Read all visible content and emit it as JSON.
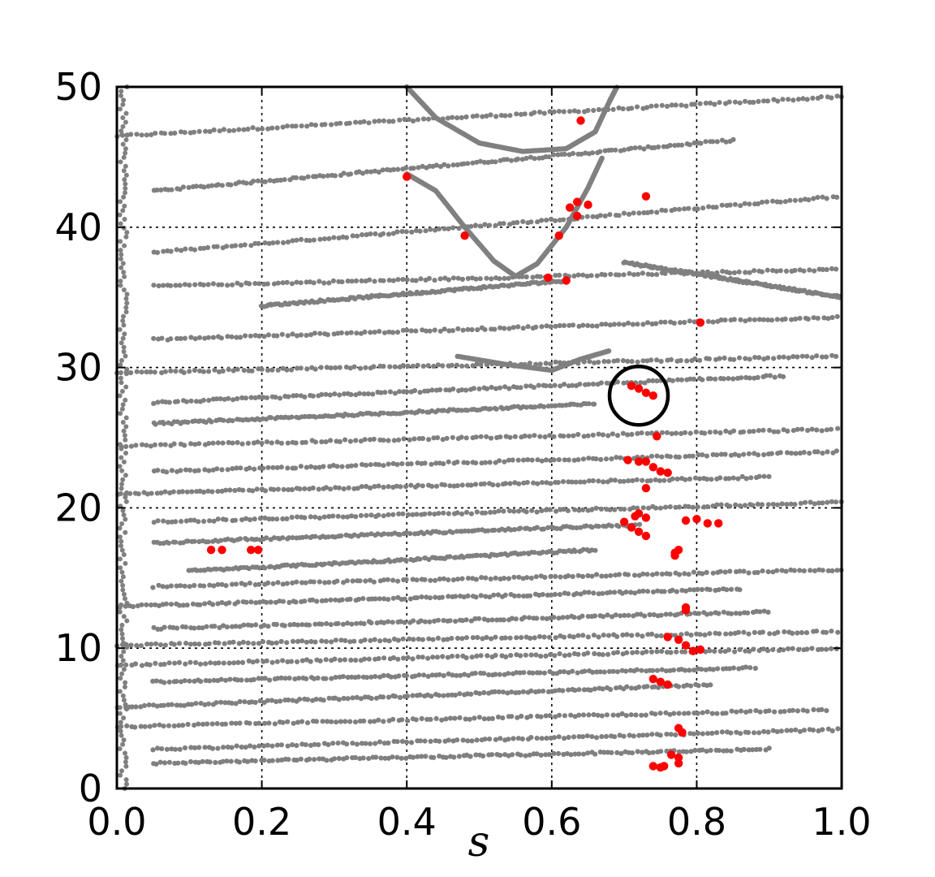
{
  "chart_data": {
    "type": "scatter",
    "title": "",
    "xlabel": "s",
    "ylabel": "",
    "xlim": [
      0.0,
      1.0
    ],
    "ylim": [
      0,
      50
    ],
    "grid": true,
    "x_ticks": [
      0.0,
      0.2,
      0.4,
      0.6,
      0.8,
      1.0
    ],
    "x_tick_labels": [
      "0.0",
      "0.2",
      "0.4",
      "0.6",
      "0.8",
      "1.0"
    ],
    "y_ticks": [
      0,
      10,
      20,
      30,
      40,
      50
    ],
    "y_tick_labels": [
      "0",
      "10",
      "20",
      "30",
      "40",
      "50"
    ],
    "colors": {
      "background_points": "#808080",
      "highlight_points": "#ff0000",
      "circle": "#000000"
    },
    "background_bands": [
      {
        "x": [
          0.0,
          1.0
        ],
        "y": [
          46.5,
          49.3
        ]
      },
      {
        "x": [
          0.05,
          0.85
        ],
        "y": [
          42.6,
          46.2
        ]
      },
      {
        "x": [
          0.05,
          1.0
        ],
        "y": [
          38.2,
          42.2
        ]
      },
      {
        "x": [
          0.05,
          1.0
        ],
        "y": [
          35.8,
          37.0
        ]
      },
      {
        "x": [
          0.2,
          0.62
        ],
        "y": [
          34.4,
          36.2
        ]
      },
      {
        "x": [
          0.7,
          1.0
        ],
        "y": [
          37.5,
          35.0
        ]
      },
      {
        "x": [
          0.05,
          1.0
        ],
        "y": [
          32.0,
          33.6
        ]
      },
      {
        "x": [
          0.0,
          1.0
        ],
        "y": [
          29.6,
          30.8
        ]
      },
      {
        "x": [
          0.05,
          0.92
        ],
        "y": [
          27.5,
          29.4
        ]
      },
      {
        "x": [
          0.05,
          0.66
        ],
        "y": [
          26.0,
          27.4
        ]
      },
      {
        "x": [
          0.0,
          1.0
        ],
        "y": [
          24.4,
          25.6
        ]
      },
      {
        "x": [
          0.05,
          1.0
        ],
        "y": [
          22.6,
          24.0
        ]
      },
      {
        "x": [
          0.0,
          0.9
        ],
        "y": [
          21.0,
          22.2
        ]
      },
      {
        "x": [
          0.05,
          1.0
        ],
        "y": [
          19.0,
          20.4
        ]
      },
      {
        "x": [
          0.05,
          0.72
        ],
        "y": [
          17.5,
          18.8
        ]
      },
      {
        "x": [
          0.1,
          0.66
        ],
        "y": [
          15.5,
          17.0
        ]
      },
      {
        "x": [
          0.05,
          1.0
        ],
        "y": [
          14.4,
          15.6
        ]
      },
      {
        "x": [
          0.0,
          0.86
        ],
        "y": [
          13.0,
          14.2
        ]
      },
      {
        "x": [
          0.05,
          0.9
        ],
        "y": [
          11.4,
          12.6
        ]
      },
      {
        "x": [
          0.0,
          1.0
        ],
        "y": [
          10.2,
          11.2
        ]
      },
      {
        "x": [
          0.0,
          1.0
        ],
        "y": [
          8.8,
          10.0
        ]
      },
      {
        "x": [
          0.05,
          0.88
        ],
        "y": [
          7.6,
          8.6
        ]
      },
      {
        "x": [
          0.0,
          0.82
        ],
        "y": [
          5.8,
          7.4
        ]
      },
      {
        "x": [
          0.0,
          0.98
        ],
        "y": [
          4.4,
          5.6
        ]
      },
      {
        "x": [
          0.05,
          1.0
        ],
        "y": [
          2.8,
          4.2
        ]
      },
      {
        "x": [
          0.05,
          0.9
        ],
        "y": [
          1.8,
          2.8
        ]
      }
    ],
    "background_curves": [
      {
        "name": "upper-loop",
        "points": [
          [
            0.4,
            50.0
          ],
          [
            0.44,
            47.8
          ],
          [
            0.5,
            46.0
          ],
          [
            0.56,
            45.4
          ],
          [
            0.62,
            45.6
          ],
          [
            0.66,
            46.8
          ],
          [
            0.68,
            49.0
          ],
          [
            0.69,
            50.0
          ]
        ]
      },
      {
        "name": "v-curve",
        "points": [
          [
            0.4,
            43.8
          ],
          [
            0.44,
            42.6
          ],
          [
            0.48,
            40.0
          ],
          [
            0.52,
            37.6
          ],
          [
            0.55,
            36.5
          ],
          [
            0.58,
            37.4
          ],
          [
            0.62,
            40.0
          ],
          [
            0.65,
            42.8
          ],
          [
            0.67,
            45.0
          ]
        ]
      },
      {
        "name": "small-dip",
        "points": [
          [
            0.47,
            30.8
          ],
          [
            0.54,
            30.2
          ],
          [
            0.6,
            29.8
          ],
          [
            0.64,
            30.6
          ],
          [
            0.68,
            31.2
          ]
        ]
      }
    ],
    "highlight_points": [
      [
        0.4,
        43.6
      ],
      [
        0.48,
        39.4
      ],
      [
        0.64,
        47.6
      ],
      [
        0.625,
        41.4
      ],
      [
        0.635,
        41.8
      ],
      [
        0.635,
        40.8
      ],
      [
        0.65,
        41.6
      ],
      [
        0.61,
        39.4
      ],
      [
        0.595,
        36.4
      ],
      [
        0.62,
        36.2
      ],
      [
        0.73,
        42.2
      ],
      [
        0.805,
        33.2
      ],
      [
        0.71,
        28.7
      ],
      [
        0.72,
        28.5
      ],
      [
        0.73,
        28.2
      ],
      [
        0.74,
        28.0
      ],
      [
        0.745,
        25.1
      ],
      [
        0.705,
        23.4
      ],
      [
        0.72,
        23.3
      ],
      [
        0.73,
        23.3
      ],
      [
        0.74,
        22.9
      ],
      [
        0.75,
        22.6
      ],
      [
        0.76,
        22.5
      ],
      [
        0.73,
        21.4
      ],
      [
        0.7,
        19.0
      ],
      [
        0.71,
        18.6
      ],
      [
        0.72,
        18.3
      ],
      [
        0.73,
        18.0
      ],
      [
        0.715,
        19.4
      ],
      [
        0.73,
        19.3
      ],
      [
        0.72,
        19.6
      ],
      [
        0.785,
        19.1
      ],
      [
        0.8,
        19.2
      ],
      [
        0.815,
        18.9
      ],
      [
        0.83,
        18.9
      ],
      [
        0.77,
        16.8
      ],
      [
        0.775,
        17.0
      ],
      [
        0.77,
        16.6
      ],
      [
        0.13,
        17.0
      ],
      [
        0.145,
        17.0
      ],
      [
        0.185,
        17.0
      ],
      [
        0.195,
        17.0
      ],
      [
        0.785,
        12.9
      ],
      [
        0.785,
        12.7
      ],
      [
        0.76,
        10.8
      ],
      [
        0.775,
        10.6
      ],
      [
        0.785,
        10.2
      ],
      [
        0.795,
        9.8
      ],
      [
        0.805,
        9.9
      ],
      [
        0.74,
        7.8
      ],
      [
        0.75,
        7.6
      ],
      [
        0.76,
        7.4
      ],
      [
        0.775,
        4.3
      ],
      [
        0.78,
        4.0
      ],
      [
        0.765,
        2.4
      ],
      [
        0.775,
        2.2
      ],
      [
        0.775,
        1.8
      ],
      [
        0.74,
        1.6
      ],
      [
        0.75,
        1.5
      ],
      [
        0.755,
        1.6
      ]
    ],
    "annotation_circle": {
      "x": 0.72,
      "y": 28.0
    }
  }
}
